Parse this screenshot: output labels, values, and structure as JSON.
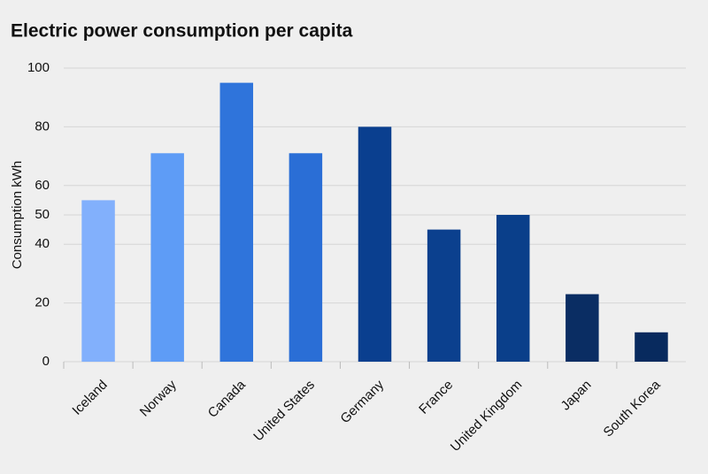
{
  "chart_data": {
    "type": "bar",
    "title": "Electric power consumption per capita",
    "y_label": "Consumption kWh",
    "categories": [
      "Iceland",
      "Norway",
      "Canada",
      "United States",
      "Germany",
      "France",
      "United Kingdom",
      "Japan",
      "South Korea"
    ],
    "values": [
      55,
      71,
      95,
      71,
      80,
      45,
      50,
      23,
      10
    ],
    "colors": [
      "#82b0fc",
      "#5e9cf6",
      "#2f74db",
      "#2a6ed6",
      "#0a3f8f",
      "#0b408e",
      "#0a3f8a",
      "#0a2d63",
      "#082a5e"
    ],
    "ylim": [
      0,
      100
    ],
    "yticks": [
      0,
      20,
      40,
      50,
      60,
      80,
      100
    ],
    "grid": true
  }
}
